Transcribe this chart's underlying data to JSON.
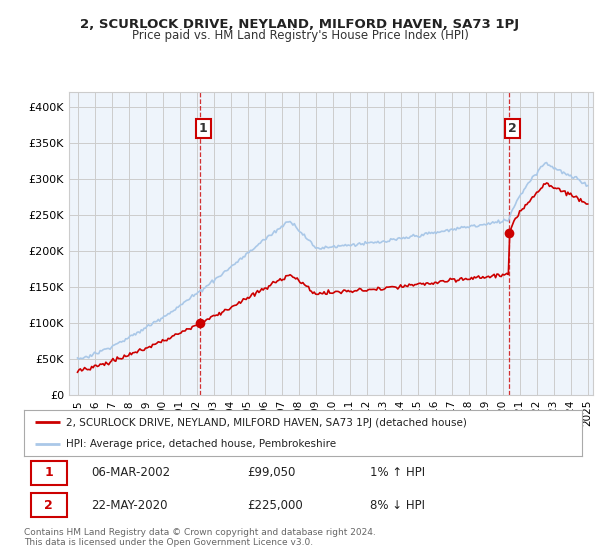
{
  "title": "2, SCURLOCK DRIVE, NEYLAND, MILFORD HAVEN, SA73 1PJ",
  "subtitle": "Price paid vs. HM Land Registry's House Price Index (HPI)",
  "ylim": [
    0,
    420000
  ],
  "yticks": [
    0,
    50000,
    100000,
    150000,
    200000,
    250000,
    300000,
    350000,
    400000
  ],
  "ytick_labels": [
    "£0",
    "£50K",
    "£100K",
    "£150K",
    "£200K",
    "£250K",
    "£300K",
    "£350K",
    "£400K"
  ],
  "sale1_date": 2002.18,
  "sale1_price": 99050,
  "sale2_date": 2020.39,
  "sale2_price": 225000,
  "line_color_property": "#cc0000",
  "line_color_hpi": "#aac8e8",
  "legend_label_property": "2, SCURLOCK DRIVE, NEYLAND, MILFORD HAVEN, SA73 1PJ (detached house)",
  "legend_label_hpi": "HPI: Average price, detached house, Pembrokeshire",
  "table_row1": [
    "1",
    "06-MAR-2002",
    "£99,050",
    "1% ↑ HPI"
  ],
  "table_row2": [
    "2",
    "22-MAY-2020",
    "£225,000",
    "8% ↓ HPI"
  ],
  "footer": "Contains HM Land Registry data © Crown copyright and database right 2024.\nThis data is licensed under the Open Government Licence v3.0.",
  "bg_color": "#ffffff",
  "plot_bg_color": "#eef4fb",
  "grid_color": "#cccccc",
  "xlim_start": 1994.5,
  "xlim_end": 2025.3,
  "xtick_years": [
    1995,
    1996,
    1997,
    1998,
    1999,
    2000,
    2001,
    2002,
    2003,
    2004,
    2005,
    2006,
    2007,
    2008,
    2009,
    2010,
    2011,
    2012,
    2013,
    2014,
    2015,
    2016,
    2017,
    2018,
    2019,
    2020,
    2021,
    2022,
    2023,
    2024,
    2025
  ]
}
